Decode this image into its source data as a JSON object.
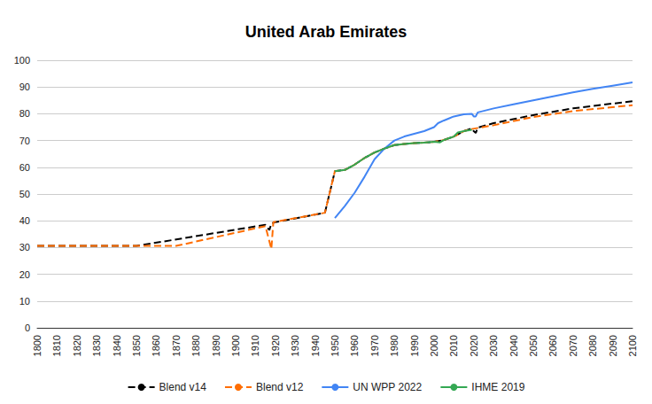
{
  "chart_data": {
    "type": "line",
    "title": "United Arab Emirates",
    "xlim": [
      1800,
      2100
    ],
    "xticks": [
      1800,
      1810,
      1820,
      1830,
      1840,
      1850,
      1860,
      1870,
      1880,
      1890,
      1900,
      1910,
      1920,
      1930,
      1940,
      1950,
      1960,
      1970,
      1980,
      1990,
      2000,
      2010,
      2020,
      2030,
      2040,
      2050,
      2060,
      2070,
      2080,
      2090,
      2100
    ],
    "ylim": [
      0,
      100
    ],
    "yticks": [
      0,
      10,
      20,
      30,
      40,
      50,
      60,
      70,
      80,
      90,
      100
    ],
    "grid": true,
    "legend": "bottom",
    "series": [
      {
        "name": "Blend v14",
        "color": "#000000",
        "line_style": "dashed",
        "x": [
          1800,
          1850,
          1915,
          1917,
          1918,
          1920,
          1945,
          1950,
          1955,
          1960,
          1965,
          1970,
          1975,
          1980,
          1985,
          1990,
          1995,
          2000,
          2005,
          2010,
          2015,
          2019,
          2020,
          2021,
          2022,
          2030,
          2050,
          2070,
          2100
        ],
        "values": [
          30.6,
          30.6,
          38.5,
          36.5,
          39,
          39.5,
          43,
          58.5,
          59,
          61,
          63.5,
          65.5,
          67,
          68.3,
          68.7,
          69,
          69.2,
          69.5,
          70.2,
          71.5,
          73.5,
          74.5,
          73.5,
          72.8,
          74.8,
          76.5,
          79.5,
          82,
          84.7
        ]
      },
      {
        "name": "Blend v12",
        "color": "#ff6d01",
        "line_style": "dashed",
        "x": [
          1800,
          1870,
          1915,
          1918,
          1919,
          1945,
          1950,
          1955,
          1960,
          1965,
          1970,
          1975,
          1980,
          1985,
          1990,
          1995,
          2000,
          2005,
          2010,
          2015,
          2019,
          2030,
          2050,
          2070,
          2100
        ],
        "values": [
          30.6,
          30.6,
          38,
          29.5,
          39.5,
          43,
          58.5,
          59,
          61,
          63.5,
          65.5,
          67,
          68.3,
          68.7,
          69,
          69.2,
          69.5,
          70.2,
          71.5,
          73.5,
          74.3,
          75.7,
          78.8,
          81,
          83.2
        ]
      },
      {
        "name": "UN WPP 2022",
        "color": "#4285f4",
        "line_style": "solid",
        "x": [
          1950,
          1955,
          1960,
          1965,
          1970,
          1975,
          1980,
          1985,
          1990,
          1995,
          2000,
          2002,
          2005,
          2010,
          2015,
          2019,
          2020,
          2021,
          2022,
          2030,
          2040,
          2050,
          2060,
          2070,
          2080,
          2090,
          2100
        ],
        "values": [
          41,
          45.5,
          50.5,
          56.5,
          63,
          67,
          70,
          71.5,
          72.5,
          73.5,
          75,
          76.5,
          77.5,
          79,
          79.8,
          80,
          79,
          79,
          80.5,
          82,
          83.5,
          85,
          86.5,
          88,
          89.3,
          90.5,
          91.7
        ]
      },
      {
        "name": "IHME 2019",
        "color": "#34a853",
        "line_style": "solid",
        "x": [
          1950,
          1955,
          1960,
          1965,
          1970,
          1975,
          1980,
          1985,
          1990,
          1995,
          2000,
          2003,
          2005,
          2010,
          2012,
          2015,
          2019
        ],
        "values": [
          58.5,
          59,
          61,
          63.5,
          65.5,
          67,
          68.3,
          68.7,
          69,
          69.2,
          69.5,
          69.3,
          70.2,
          71.5,
          73,
          73.5,
          74
        ]
      }
    ]
  }
}
